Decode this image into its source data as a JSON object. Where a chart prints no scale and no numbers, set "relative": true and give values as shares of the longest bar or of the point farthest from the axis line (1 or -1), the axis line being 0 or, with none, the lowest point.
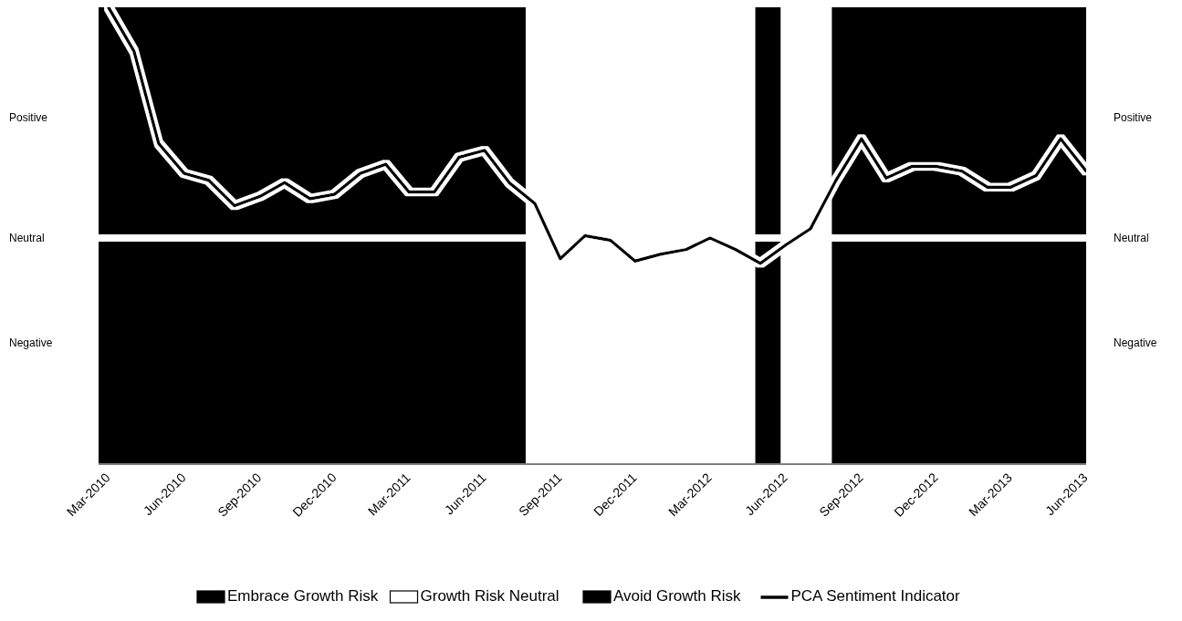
{
  "chart_data": {
    "type": "line",
    "relative": true,
    "x": [
      "2010-03",
      "2010-04",
      "2010-05",
      "2010-06",
      "2010-07",
      "2010-08",
      "2010-09",
      "2010-10",
      "2010-11",
      "2010-12",
      "2011-01",
      "2011-02",
      "2011-03",
      "2011-04",
      "2011-05",
      "2011-06",
      "2011-07",
      "2011-08",
      "2011-09",
      "2011-10",
      "2011-11",
      "2011-12",
      "2012-01",
      "2012-02",
      "2012-03",
      "2012-04",
      "2012-05",
      "2012-06",
      "2012-07",
      "2012-08",
      "2012-09",
      "2012-10",
      "2012-11",
      "2012-12",
      "2013-01",
      "2013-02",
      "2013-03",
      "2013-04",
      "2013-05",
      "2013-06"
    ],
    "series": [
      {
        "name": "PCA Sentiment Indicator",
        "color": "#000000",
        "values": [
          1,
          0.81,
          0.41,
          0.28,
          0.25,
          0.14,
          0.18,
          0.24,
          0.17,
          0.19,
          0.28,
          0.32,
          0.2,
          0.2,
          0.35,
          0.38,
          0.24,
          0.15,
          -0.09,
          0.01,
          -0.01,
          -0.1,
          -0.07,
          -0.05,
          0,
          -0.05,
          -0.11,
          -0.03,
          0.04,
          0.25,
          0.43,
          0.26,
          0.31,
          0.31,
          0.29,
          0.22,
          0.22,
          0.27,
          0.43,
          0.29
        ]
      }
    ],
    "xlim": [
      "2010-02-17",
      "2013-06"
    ],
    "xticks": [
      {
        "value": "2010-03",
        "label": "Mar-2010"
      },
      {
        "value": "2010-06",
        "label": "Jun-2010"
      },
      {
        "value": "2010-09",
        "label": "Sep-2010"
      },
      {
        "value": "2010-12",
        "label": "Dec-2010"
      },
      {
        "value": "2011-03",
        "label": "Mar-2011"
      },
      {
        "value": "2011-06",
        "label": "Jun-2011"
      },
      {
        "value": "2011-09",
        "label": "Sep-2011"
      },
      {
        "value": "2011-12",
        "label": "Dec-2011"
      },
      {
        "value": "2012-03",
        "label": "Mar-2012"
      },
      {
        "value": "2012-06",
        "label": "Jun-2012"
      },
      {
        "value": "2012-09",
        "label": "Sep-2012"
      },
      {
        "value": "2012-12",
        "label": "Dec-2012"
      },
      {
        "value": "2013-03",
        "label": "Mar-2013"
      },
      {
        "value": "2013-06",
        "label": "Jun-2013"
      }
    ],
    "annotations": [
      "Positive",
      "Neutral",
      "Negative"
    ],
    "bands": [
      {
        "axis": "x",
        "from": "2010-02-17",
        "to": "2011-07-21",
        "label": "Embrace Growth Risk",
        "color": "#000000"
      },
      {
        "axis": "x",
        "from": "2011-07-21",
        "to": "2012-04-25",
        "label": "Growth Risk Neutral",
        "color": "#ffffff"
      },
      {
        "axis": "x",
        "from": "2012-04-25",
        "to": "2012-05-26",
        "label": "Avoid Growth Risk",
        "color": "#000000"
      },
      {
        "axis": "x",
        "from": "2012-05-26",
        "to": "2012-07-27",
        "color": "#ffffff"
      },
      {
        "axis": "x",
        "from": "2012-07-27",
        "to": "2013-06",
        "color": "#000000"
      }
    ],
    "legend": "bottom"
  }
}
